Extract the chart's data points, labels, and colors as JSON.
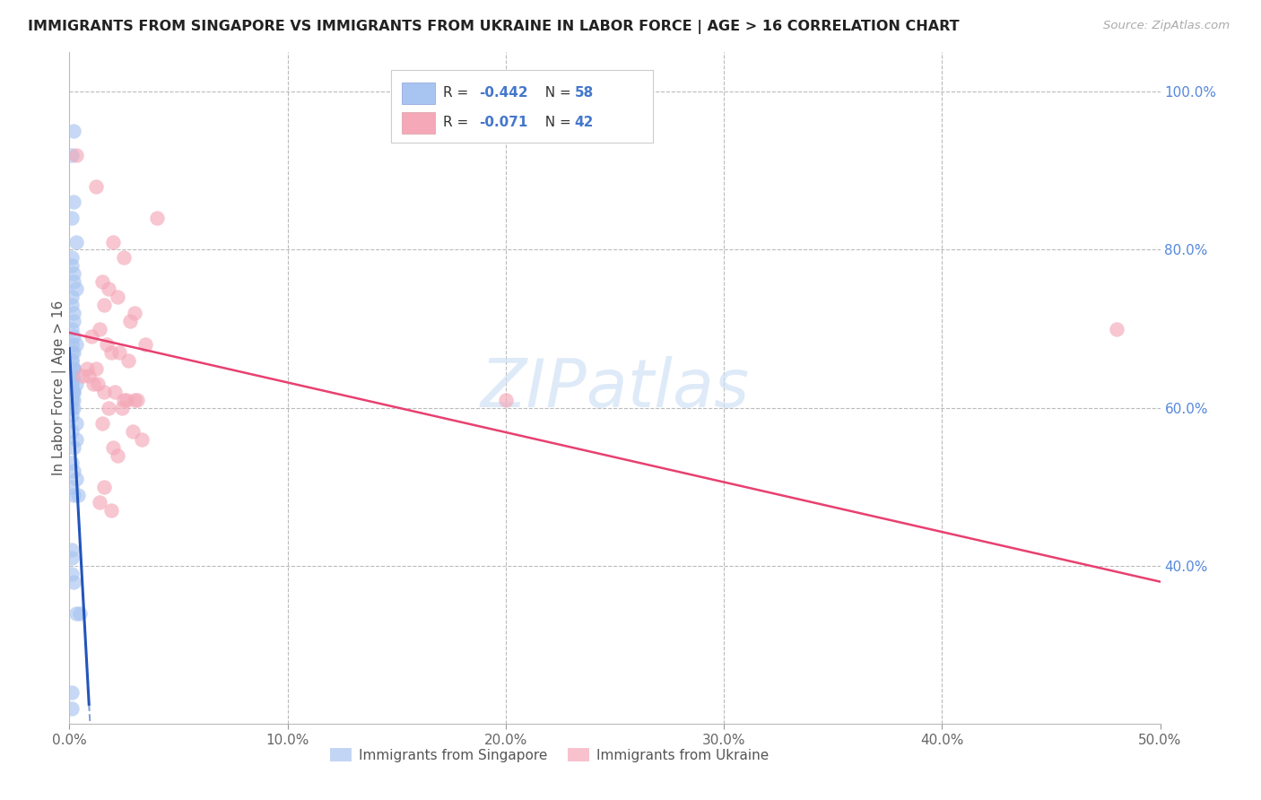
{
  "title": "IMMIGRANTS FROM SINGAPORE VS IMMIGRANTS FROM UKRAINE IN LABOR FORCE | AGE > 16 CORRELATION CHART",
  "source_text": "Source: ZipAtlas.com",
  "ylabel": "In Labor Force | Age > 16",
  "xlim": [
    0.0,
    0.5
  ],
  "ylim": [
    0.2,
    1.05
  ],
  "x_ticks": [
    0.0,
    0.1,
    0.2,
    0.3,
    0.4,
    0.5
  ],
  "x_tick_labels": [
    "0.0%",
    "10.0%",
    "20.0%",
    "30.0%",
    "40.0%",
    "50.0%"
  ],
  "y_ticks_right": [
    1.0,
    0.8,
    0.6,
    0.4
  ],
  "y_tick_labels_right": [
    "100.0%",
    "80.0%",
    "60.0%",
    "40.0%"
  ],
  "singapore_color": "#a8c4f0",
  "ukraine_color": "#f4a8b8",
  "singapore_line_color": "#2255bb",
  "ukraine_line_color": "#e84070",
  "watermark": "ZIPatlas",
  "legend_label_singapore": "Immigrants from Singapore",
  "legend_label_ukraine": "Immigrants from Ukraine",
  "singapore_R": "-0.442",
  "singapore_N": "58",
  "ukraine_R": "-0.071",
  "ukraine_N": "42",
  "legend_R_color": "#333333",
  "legend_val_color": "#4477cc",
  "sg_points_x": [
    0.001,
    0.002,
    0.002,
    0.001,
    0.003,
    0.001,
    0.001,
    0.002,
    0.002,
    0.003,
    0.001,
    0.001,
    0.002,
    0.002,
    0.001,
    0.002,
    0.001,
    0.003,
    0.002,
    0.001,
    0.001,
    0.001,
    0.002,
    0.002,
    0.002,
    0.001,
    0.002,
    0.001,
    0.001,
    0.003,
    0.002,
    0.001,
    0.002,
    0.001,
    0.001,
    0.001,
    0.002,
    0.002,
    0.001,
    0.001,
    0.003,
    0.001,
    0.003,
    0.002,
    0.001,
    0.002,
    0.003,
    0.001,
    0.002,
    0.004,
    0.001,
    0.001,
    0.001,
    0.002,
    0.005,
    0.003,
    0.001,
    0.001
  ],
  "sg_points_y": [
    0.92,
    0.95,
    0.86,
    0.84,
    0.81,
    0.79,
    0.78,
    0.77,
    0.76,
    0.75,
    0.74,
    0.73,
    0.72,
    0.71,
    0.7,
    0.69,
    0.68,
    0.68,
    0.67,
    0.67,
    0.66,
    0.66,
    0.65,
    0.65,
    0.65,
    0.64,
    0.64,
    0.63,
    0.63,
    0.63,
    0.62,
    0.62,
    0.62,
    0.62,
    0.61,
    0.61,
    0.61,
    0.6,
    0.6,
    0.59,
    0.58,
    0.57,
    0.56,
    0.55,
    0.53,
    0.52,
    0.51,
    0.5,
    0.49,
    0.49,
    0.42,
    0.41,
    0.39,
    0.38,
    0.34,
    0.34,
    0.24,
    0.22
  ],
  "uk_points_x": [
    0.003,
    0.012,
    0.04,
    0.02,
    0.025,
    0.015,
    0.018,
    0.022,
    0.016,
    0.03,
    0.028,
    0.014,
    0.01,
    0.035,
    0.017,
    0.019,
    0.023,
    0.027,
    0.012,
    0.008,
    0.006,
    0.009,
    0.011,
    0.013,
    0.016,
    0.021,
    0.026,
    0.031,
    0.024,
    0.018,
    0.015,
    0.029,
    0.033,
    0.02,
    0.022,
    0.016,
    0.014,
    0.019,
    0.025,
    0.03,
    0.48,
    0.2
  ],
  "uk_points_y": [
    0.92,
    0.88,
    0.84,
    0.81,
    0.79,
    0.76,
    0.75,
    0.74,
    0.73,
    0.72,
    0.71,
    0.7,
    0.69,
    0.68,
    0.68,
    0.67,
    0.67,
    0.66,
    0.65,
    0.65,
    0.64,
    0.64,
    0.63,
    0.63,
    0.62,
    0.62,
    0.61,
    0.61,
    0.6,
    0.6,
    0.58,
    0.57,
    0.56,
    0.55,
    0.54,
    0.5,
    0.48,
    0.47,
    0.61,
    0.61,
    0.7,
    0.61
  ],
  "sg_line_x0": 0.0,
  "sg_line_y0": 0.675,
  "sg_line_slope": -50.0,
  "uk_line_x0": 0.0,
  "uk_line_y0": 0.695,
  "uk_line_slope": -0.63
}
